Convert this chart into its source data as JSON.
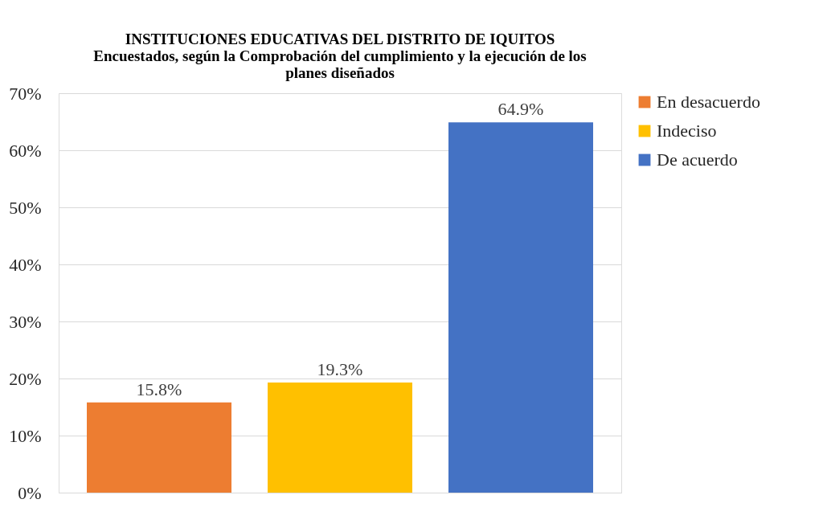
{
  "chart_data": {
    "type": "bar",
    "title": "INSTITUCIONES EDUCATIVAS DEL DISTRITO DE IQUITOS",
    "subtitle": "Encuestados, según la Comprobación del cumplimiento  y la ejecución de los planes diseñados",
    "categories": [
      null
    ],
    "series": [
      {
        "name": "En desacuerdo",
        "color": "#ed7d31",
        "values": [
          15.8
        ],
        "value_labels": [
          "15.8%"
        ]
      },
      {
        "name": "Indeciso",
        "color": "#ffc000",
        "values": [
          19.3
        ],
        "value_labels": [
          "19.3%"
        ]
      },
      {
        "name": "De acuerdo",
        "color": "#4472c4",
        "values": [
          64.9
        ],
        "value_labels": [
          "64.9%"
        ]
      }
    ],
    "ylim": [
      0,
      70
    ],
    "yticks": [
      {
        "value": 0,
        "label": "0%"
      },
      {
        "value": 10,
        "label": "10%"
      },
      {
        "value": 20,
        "label": "20%"
      },
      {
        "value": 30,
        "label": "30%"
      },
      {
        "value": 40,
        "label": "40%"
      },
      {
        "value": 50,
        "label": "50%"
      },
      {
        "value": 60,
        "label": "60%"
      },
      {
        "value": 70,
        "label": "70%"
      }
    ],
    "grid": "y",
    "legend": "right"
  }
}
